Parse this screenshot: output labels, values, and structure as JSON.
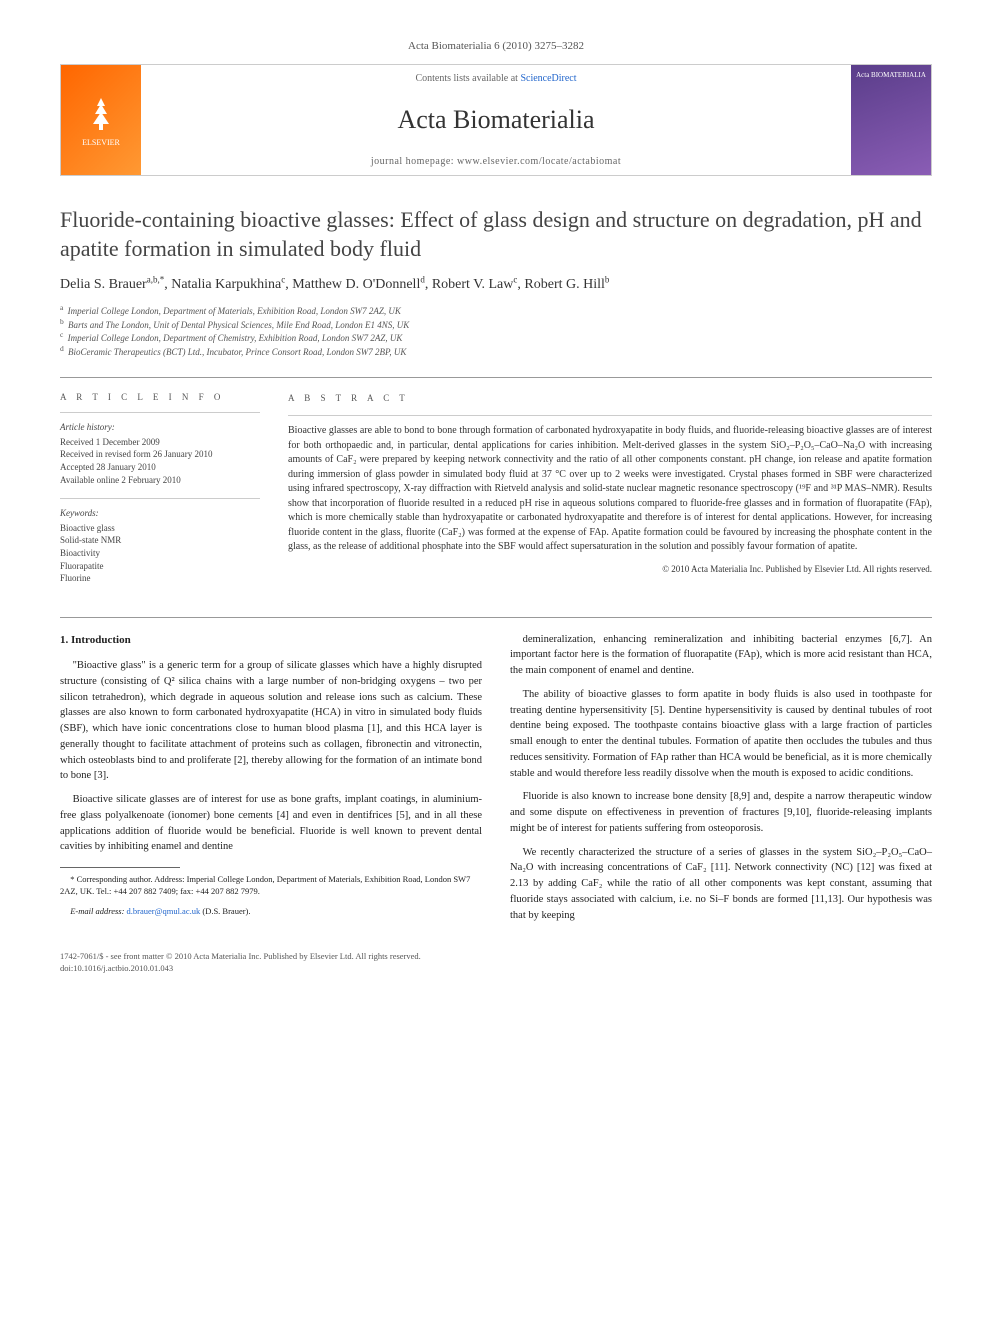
{
  "journal_header": "Acta Biomaterialia 6 (2010) 3275–3282",
  "banner": {
    "publisher": "ELSEVIER",
    "contents_prefix": "Contents lists available at ",
    "contents_link": "ScienceDirect",
    "journal_name": "Acta Biomaterialia",
    "homepage_label": "journal homepage: www.elsevier.com/locate/actabiomat",
    "cover_text": "Acta BIOMATERIALIA"
  },
  "title": "Fluoride-containing bioactive glasses: Effect of glass design and structure on degradation, pH and apatite formation in simulated body fluid",
  "authors_html": "Delia S. Brauer<sup>a,b,*</sup>, Natalia Karpukhina<sup>c</sup>, Matthew D. O'Donnell<sup>d</sup>, Robert V. Law<sup>c</sup>, Robert G. Hill<sup>b</sup>",
  "affiliations": [
    {
      "sup": "a",
      "text": "Imperial College London, Department of Materials, Exhibition Road, London SW7 2AZ, UK"
    },
    {
      "sup": "b",
      "text": "Barts and The London, Unit of Dental Physical Sciences, Mile End Road, London E1 4NS, UK"
    },
    {
      "sup": "c",
      "text": "Imperial College London, Department of Chemistry, Exhibition Road, London SW7 2AZ, UK"
    },
    {
      "sup": "d",
      "text": "BioCeramic Therapeutics (BCT) Ltd., Incubator, Prince Consort Road, London SW7 2BP, UK"
    }
  ],
  "article_info": {
    "heading": "A R T I C L E   I N F O",
    "history_label": "Article history:",
    "history": [
      "Received 1 December 2009",
      "Received in revised form 26 January 2010",
      "Accepted 28 January 2010",
      "Available online 2 February 2010"
    ],
    "keywords_label": "Keywords:",
    "keywords": [
      "Bioactive glass",
      "Solid-state NMR",
      "Bioactivity",
      "Fluorapatite",
      "Fluorine"
    ]
  },
  "abstract": {
    "heading": "A B S T R A C T",
    "text": "Bioactive glasses are able to bond to bone through formation of carbonated hydroxyapatite in body fluids, and fluoride-releasing bioactive glasses are of interest for both orthopaedic and, in particular, dental applications for caries inhibition. Melt-derived glasses in the system SiO₂–P₂O₅–CaO–Na₂O with increasing amounts of CaF₂ were prepared by keeping network connectivity and the ratio of all other components constant. pH change, ion release and apatite formation during immersion of glass powder in simulated body fluid at 37 °C over up to 2 weeks were investigated. Crystal phases formed in SBF were characterized using infrared spectroscopy, X-ray diffraction with Rietveld analysis and solid-state nuclear magnetic resonance spectroscopy (¹⁹F and ³¹P MAS–NMR). Results show that incorporation of fluoride resulted in a reduced pH rise in aqueous solutions compared to fluoride-free glasses and in formation of fluorapatite (FAp), which is more chemically stable than hydroxyapatite or carbonated hydroxyapatite and therefore is of interest for dental applications. However, for increasing fluoride content in the glass, fluorite (CaF₂) was formed at the expense of FAp. Apatite formation could be favoured by increasing the phosphate content in the glass, as the release of additional phosphate into the SBF would affect supersaturation in the solution and possibly favour formation of apatite.",
    "copyright": "© 2010 Acta Materialia Inc. Published by Elsevier Ltd. All rights reserved."
  },
  "section1_heading": "1. Introduction",
  "para1": "\"Bioactive glass\" is a generic term for a group of silicate glasses which have a highly disrupted structure (consisting of Q² silica chains with a large number of non-bridging oxygens – two per silicon tetrahedron), which degrade in aqueous solution and release ions such as calcium. These glasses are also known to form carbonated hydroxyapatite (HCA) in vitro in simulated body fluids (SBF), which have ionic concentrations close to human blood plasma [1], and this HCA layer is generally thought to facilitate attachment of proteins such as collagen, fibronectin and vitronectin, which osteoblasts bind to and proliferate [2], thereby allowing for the formation of an intimate bond to bone [3].",
  "para2": "Bioactive silicate glasses are of interest for use as bone grafts, implant coatings, in aluminium-free glass polyalkenoate (ionomer) bone cements [4] and even in dentifrices [5], and in all these applications addition of fluoride would be beneficial. Fluoride is well known to prevent dental cavities by inhibiting enamel and dentine",
  "para3": "demineralization, enhancing remineralization and inhibiting bacterial enzymes [6,7]. An important factor here is the formation of fluorapatite (FAp), which is more acid resistant than HCA, the main component of enamel and dentine.",
  "para4": "The ability of bioactive glasses to form apatite in body fluids is also used in toothpaste for treating dentine hypersensitivity [5]. Dentine hypersensitivity is caused by dentinal tubules of root dentine being exposed. The toothpaste contains bioactive glass with a large fraction of particles small enough to enter the dentinal tubules. Formation of apatite then occludes the tubules and thus reduces sensitivity. Formation of FAp rather than HCA would be beneficial, as it is more chemically stable and would therefore less readily dissolve when the mouth is exposed to acidic conditions.",
  "para5": "Fluoride is also known to increase bone density [8,9] and, despite a narrow therapeutic window and some dispute on effectiveness in prevention of fractures [9,10], fluoride-releasing implants might be of interest for patients suffering from osteoporosis.",
  "para6": "We recently characterized the structure of a series of glasses in the system SiO₂–P₂O₅–CaO–Na₂O with increasing concentrations of CaF₂ [11]. Network connectivity (NC) [12] was fixed at 2.13 by adding CaF₂ while the ratio of all other components was kept constant, assuming that fluoride stays associated with calcium, i.e. no Si–F bonds are formed [11,13]. Our hypothesis was that by keeping",
  "footnote": {
    "corr": "* Corresponding author. Address: Imperial College London, Department of Materials, Exhibition Road, London SW7 2AZ, UK. Tel.: +44 207 882 7409; fax: +44 207 882 7979.",
    "email_label": "E-mail address:",
    "email": "d.brauer@qmul.ac.uk",
    "email_name": "(D.S. Brauer)."
  },
  "footer": {
    "line1": "1742-7061/$ - see front matter © 2010 Acta Materialia Inc. Published by Elsevier Ltd. All rights reserved.",
    "line2": "doi:10.1016/j.actbio.2010.01.043"
  }
}
